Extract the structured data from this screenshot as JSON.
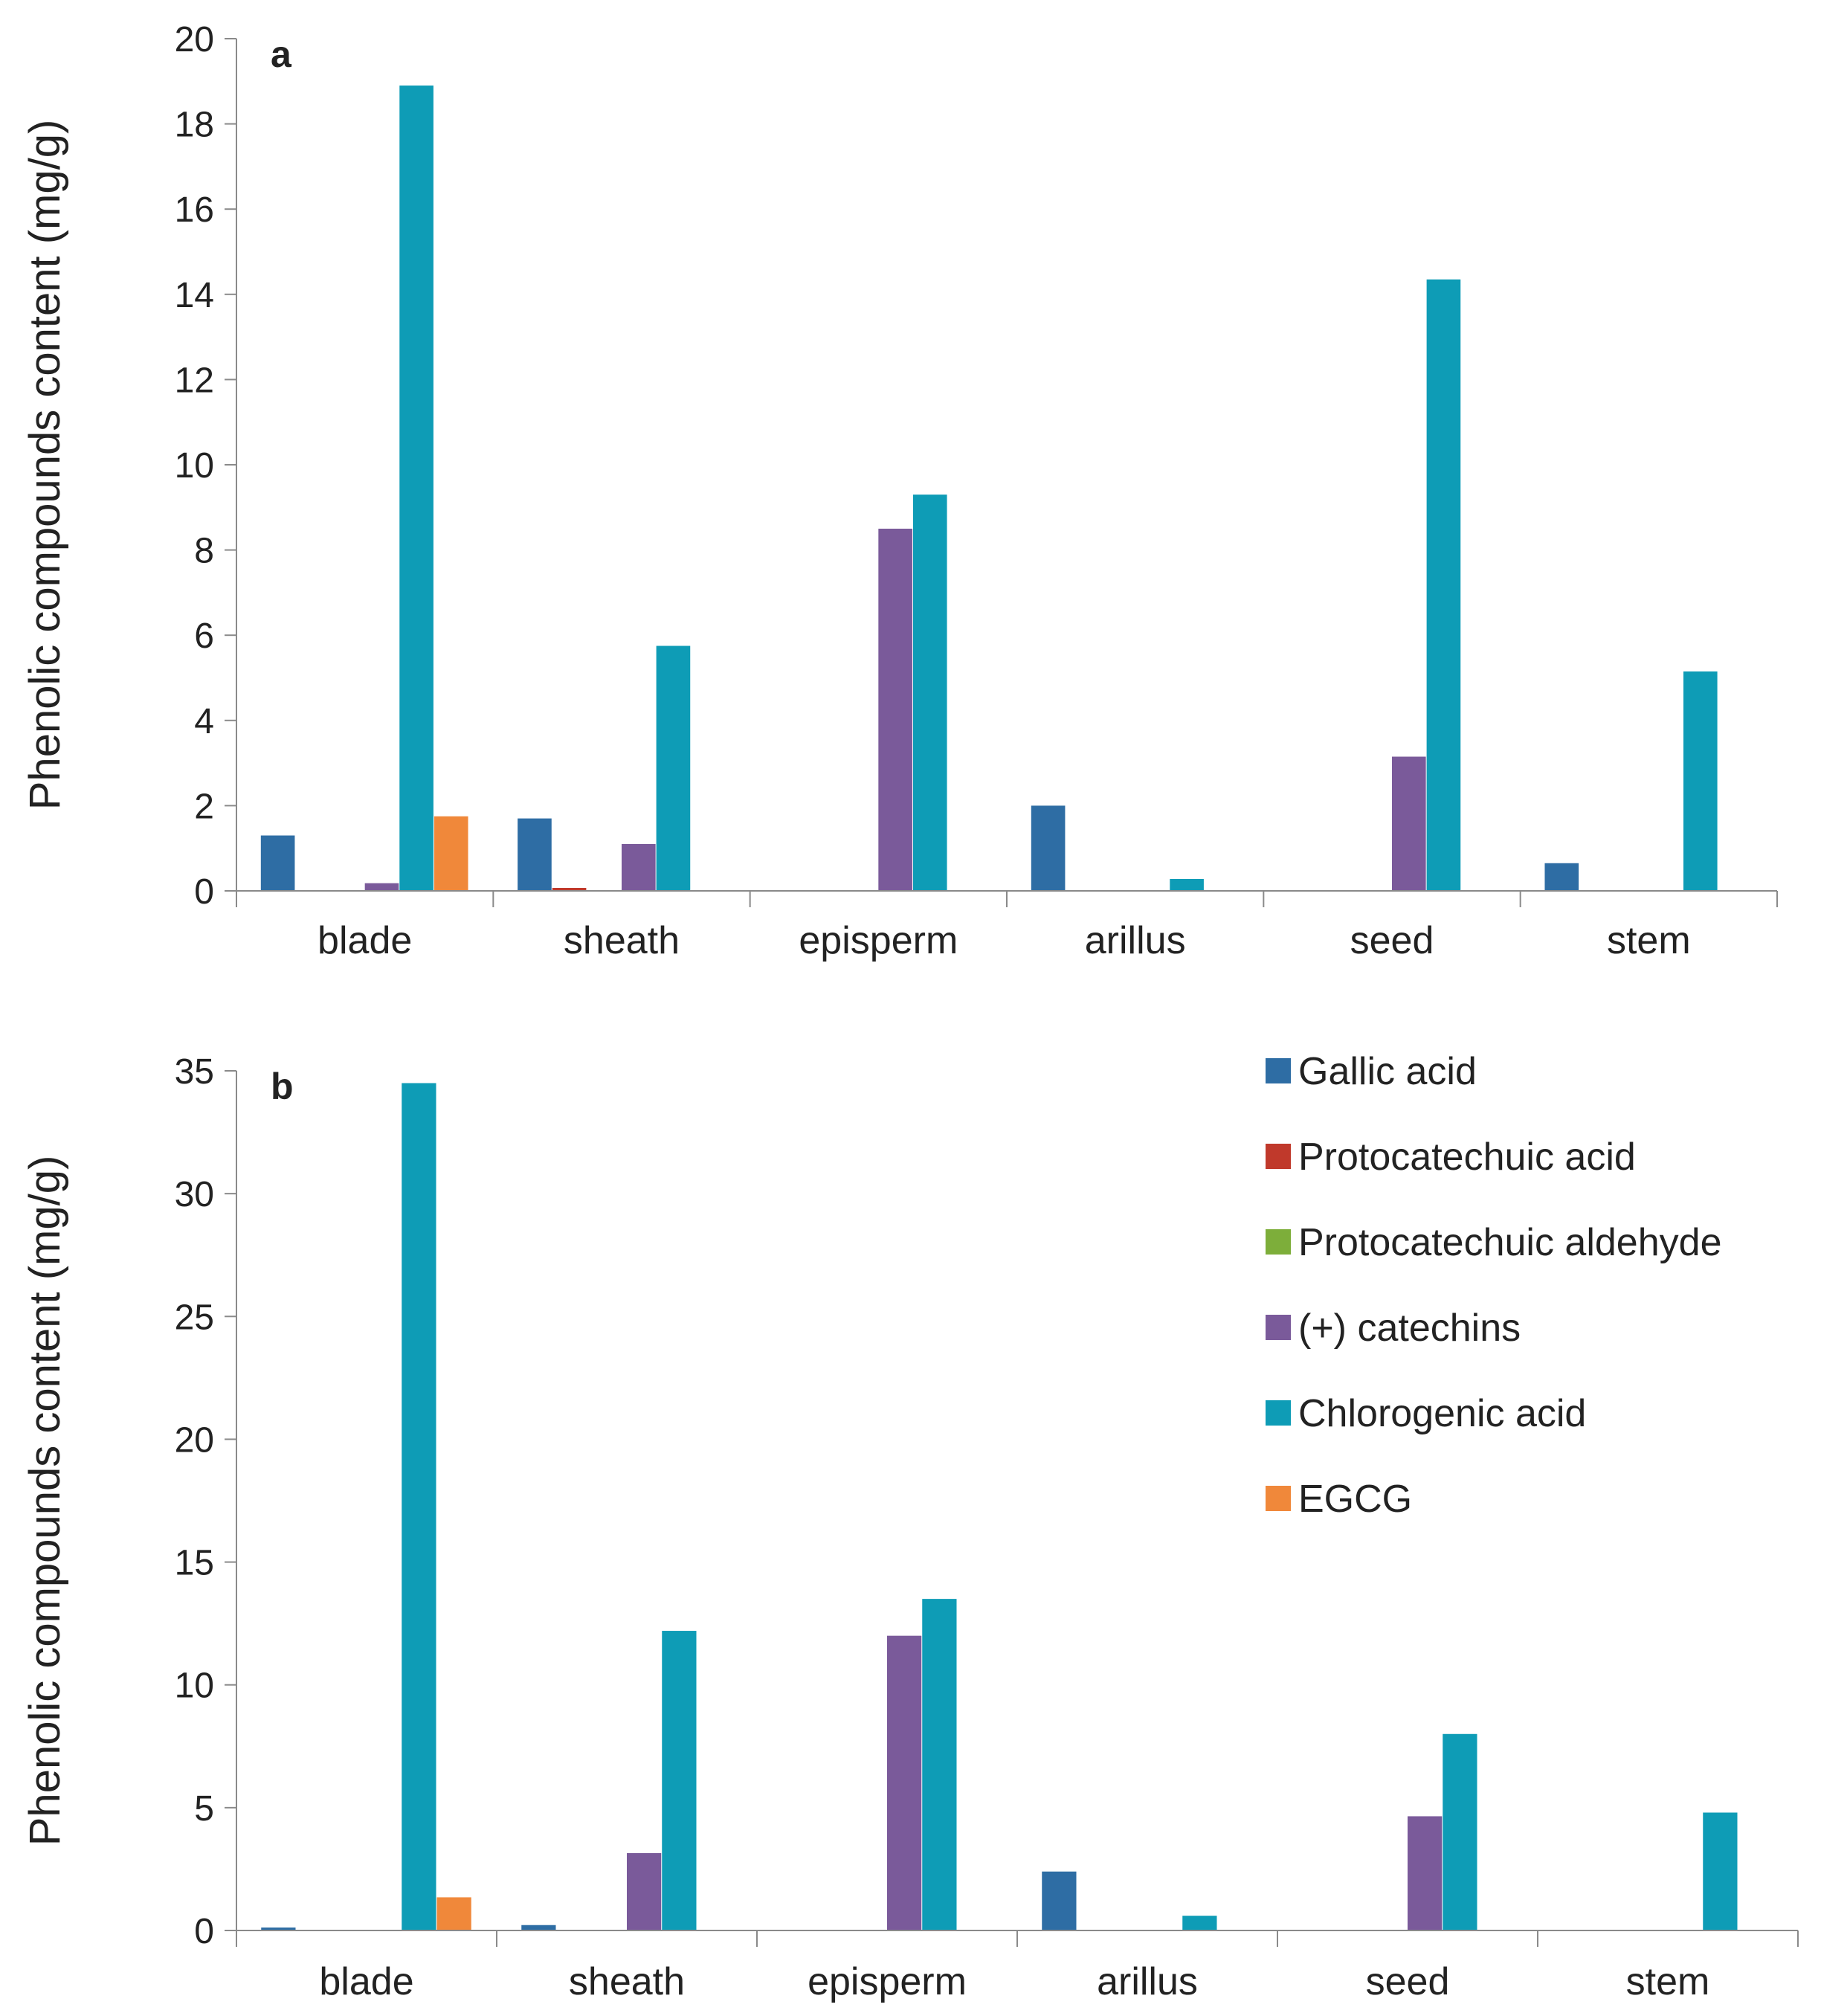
{
  "chart_data": [
    {
      "type": "bar",
      "panel_label": "a",
      "ylabel": "Phenolic compounds content (mg/g)",
      "ylim": [
        0,
        20
      ],
      "yticks": [
        0,
        2,
        4,
        6,
        8,
        10,
        12,
        14,
        16,
        18,
        20
      ],
      "categories": [
        "blade",
        "sheath",
        "episperm",
        "arillus",
        "seed",
        "stem"
      ],
      "series": [
        {
          "name": "Gallic acid",
          "color": "#2E6DA4",
          "values": [
            1.3,
            1.7,
            0,
            2.0,
            0,
            0.65
          ]
        },
        {
          "name": "Protocatechuic acid",
          "color": "#C0392B",
          "values": [
            0,
            0.07,
            0,
            0,
            0,
            0
          ]
        },
        {
          "name": "Protocatechuic aldehyde",
          "color": "#7DAE3A",
          "values": [
            0,
            0,
            0,
            0,
            0,
            0
          ]
        },
        {
          "name": "(+) catechins",
          "color": "#7A5A9A",
          "values": [
            0.18,
            1.1,
            8.5,
            0,
            3.15,
            0
          ]
        },
        {
          "name": "Chlorogenic acid",
          "color": "#0E9CB6",
          "values": [
            18.9,
            5.75,
            9.3,
            0.28,
            14.35,
            5.15
          ]
        },
        {
          "name": "EGCG",
          "color": "#F0883A",
          "values": [
            1.75,
            0,
            0,
            0,
            0,
            0
          ]
        }
      ]
    },
    {
      "type": "bar",
      "panel_label": "b",
      "ylabel": "Phenolic compounds content (mg/g)",
      "ylim": [
        0,
        35
      ],
      "yticks": [
        0,
        5,
        10,
        15,
        20,
        25,
        30,
        35
      ],
      "categories": [
        "blade",
        "sheath",
        "episperm",
        "arillus",
        "seed",
        "stem"
      ],
      "series": [
        {
          "name": "Gallic acid",
          "color": "#2E6DA4",
          "values": [
            0.12,
            0.22,
            0,
            2.4,
            0,
            0
          ]
        },
        {
          "name": "Protocatechuic acid",
          "color": "#C0392B",
          "values": [
            0,
            0,
            0,
            0,
            0,
            0
          ]
        },
        {
          "name": "Protocatechuic aldehyde",
          "color": "#7DAE3A",
          "values": [
            0,
            0,
            0,
            0,
            0,
            0
          ]
        },
        {
          "name": "(+) catechins",
          "color": "#7A5A9A",
          "values": [
            0,
            3.15,
            12.0,
            0,
            4.65,
            0
          ]
        },
        {
          "name": "Chlorogenic acid",
          "color": "#0E9CB6",
          "values": [
            34.5,
            12.2,
            13.5,
            0.6,
            8.0,
            4.8
          ]
        },
        {
          "name": "EGCG",
          "color": "#F0883A",
          "values": [
            1.35,
            0,
            0,
            0,
            0,
            0
          ]
        }
      ],
      "legend_position": "top-right"
    }
  ]
}
